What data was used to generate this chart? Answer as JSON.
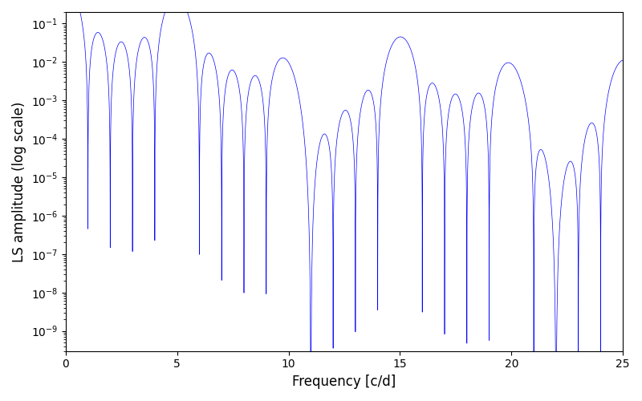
{
  "xlabel": "Frequency [c/d]",
  "ylabel": "LS amplitude (log scale)",
  "xlim": [
    0,
    25
  ],
  "ylim": [
    3e-10,
    0.2
  ],
  "line_color": "#0000ff",
  "line_width": 0.5,
  "background_color": "#ffffff",
  "figsize": [
    8.0,
    5.0
  ],
  "dpi": 100,
  "N_freqs": 15000
}
